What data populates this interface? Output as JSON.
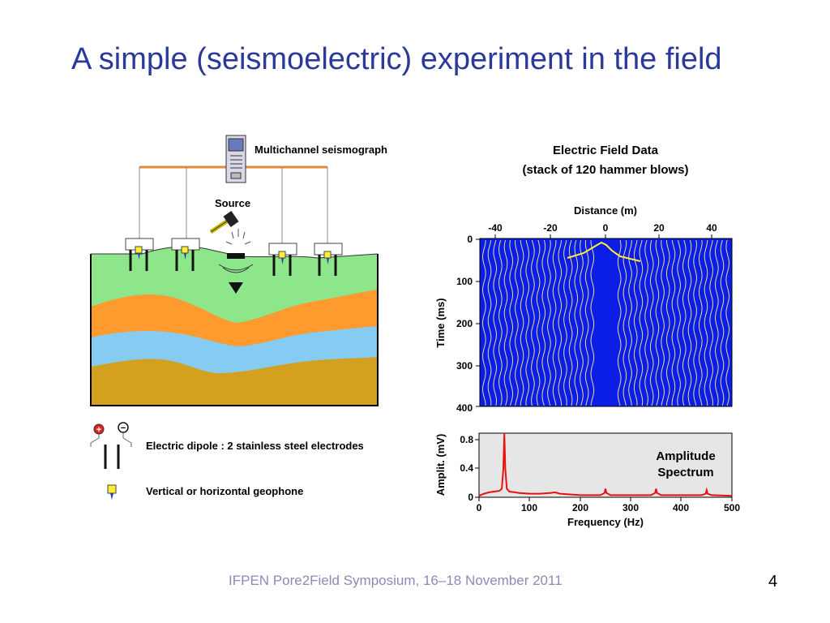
{
  "slide": {
    "title": "A simple (seismoelectric) experiment in the field",
    "footer": "IFPEN Pore2Field Symposium, 16–18 November 2011",
    "page_number": "4"
  },
  "diagram": {
    "seismograph_label": "Multichannel seismograph",
    "source_label": "Source",
    "legend": {
      "dipole_label": "Electric dipole : 2 stainless steel electrodes",
      "geophone_label": "Vertical or horizontal geophone",
      "plus_sign": "+",
      "minus_sign": "−"
    },
    "colors": {
      "surface_layer": "#8ee68a",
      "orange_layer": "#ff9a2e",
      "blue_layer": "#86ccf2",
      "bottom_layer": "#d4a020",
      "cable": "#e58a3a",
      "geophone": "#ffee33"
    }
  },
  "seismic_panel": {
    "title_line1": "Electric Field Data",
    "title_line2": "(stack of 120 hammer blows)",
    "x_axis_label": "Distance (m)",
    "x_ticks": [
      "-40",
      "-20",
      "0",
      "20",
      "40"
    ],
    "y_axis_label": "Time (ms)",
    "y_ticks": [
      "0",
      "100",
      "200",
      "300",
      "400"
    ],
    "background_color": "#0a1ee6",
    "trace_color": "#e8d898"
  },
  "spectrum": {
    "annotation_line1": "Amplitude",
    "annotation_line2": "Spectrum",
    "x_label": "Frequency (Hz)",
    "y_label": "Amplit. (mV)",
    "x_tick_labels": [
      "0",
      "100",
      "200",
      "300",
      "400",
      "500"
    ],
    "y_tick_labels": [
      "0",
      "0.4",
      "0.8"
    ],
    "line_color": "#e81010",
    "background_color": "#e6e6e6"
  },
  "chart_data": {
    "type": "line",
    "xlabel": "Frequency (Hz)",
    "ylabel": "Amplit. (mV)",
    "xlim": [
      0,
      500
    ],
    "ylim": [
      0,
      0.9
    ],
    "x": [
      0,
      10,
      20,
      30,
      40,
      45,
      48,
      50,
      52,
      55,
      60,
      80,
      100,
      120,
      140,
      150,
      160,
      180,
      200,
      240,
      248,
      250,
      252,
      260,
      300,
      340,
      348,
      350,
      352,
      360,
      400,
      440,
      448,
      450,
      452,
      460,
      500
    ],
    "series": [
      {
        "values": [
          0.02,
          0.05,
          0.07,
          0.08,
          0.09,
          0.12,
          0.4,
          0.9,
          0.4,
          0.12,
          0.08,
          0.06,
          0.05,
          0.05,
          0.06,
          0.07,
          0.05,
          0.04,
          0.03,
          0.03,
          0.06,
          0.12,
          0.06,
          0.03,
          0.03,
          0.03,
          0.06,
          0.12,
          0.06,
          0.03,
          0.03,
          0.03,
          0.05,
          0.1,
          0.05,
          0.03,
          0.02
        ]
      }
    ]
  }
}
